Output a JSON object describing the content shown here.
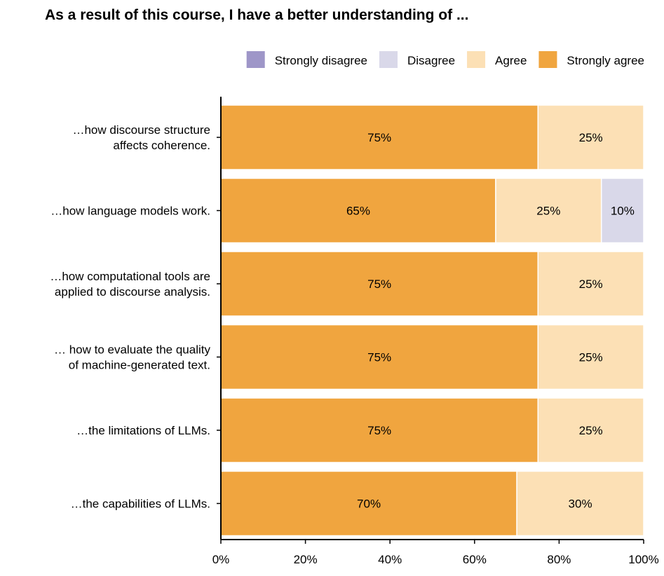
{
  "chart_data": {
    "type": "bar",
    "orientation": "horizontal",
    "stacked": true,
    "title": "As a result of this course, I have a better understanding of ...",
    "xlabel": "",
    "ylabel": "",
    "xlim": [
      0,
      100
    ],
    "x_ticks": [
      "0%",
      "20%",
      "40%",
      "60%",
      "80%",
      "100%"
    ],
    "grid": false,
    "legend_position": "top-right",
    "categories": [
      [
        "…how discourse structure",
        "affects coherence."
      ],
      [
        "…how language models work."
      ],
      [
        "…how computational tools are",
        "applied to discourse analysis."
      ],
      [
        "… how to evaluate the quality",
        "of machine-generated text."
      ],
      [
        "…the limitations of LLMs."
      ],
      [
        "…the capabilities of LLMs."
      ]
    ],
    "series": [
      {
        "name": "Strongly agree",
        "color": "#F0A53F",
        "values": [
          75,
          65,
          75,
          75,
          75,
          70
        ],
        "labels": [
          "75%",
          "65%",
          "75%",
          "75%",
          "75%",
          "70%"
        ]
      },
      {
        "name": "Agree",
        "color": "#FCE0B5",
        "values": [
          25,
          25,
          25,
          25,
          25,
          30
        ],
        "labels": [
          "25%",
          "25%",
          "25%",
          "25%",
          "25%",
          "30%"
        ]
      },
      {
        "name": "Disagree",
        "color": "#D9D8E9",
        "values": [
          0,
          10,
          0,
          0,
          0,
          0
        ],
        "labels": [
          "",
          "10%",
          "",
          "",
          "",
          ""
        ]
      },
      {
        "name": "Strongly disagree",
        "color": "#9E96C8",
        "values": [
          0,
          0,
          0,
          0,
          0,
          0
        ],
        "labels": [
          "",
          "",
          "",
          "",
          "",
          ""
        ]
      }
    ],
    "legend": [
      {
        "name": "Strongly disagree",
        "color": "#9E96C8"
      },
      {
        "name": "Disagree",
        "color": "#D9D8E9"
      },
      {
        "name": "Agree",
        "color": "#FCE0B5"
      },
      {
        "name": "Strongly agree",
        "color": "#F0A53F"
      }
    ]
  }
}
